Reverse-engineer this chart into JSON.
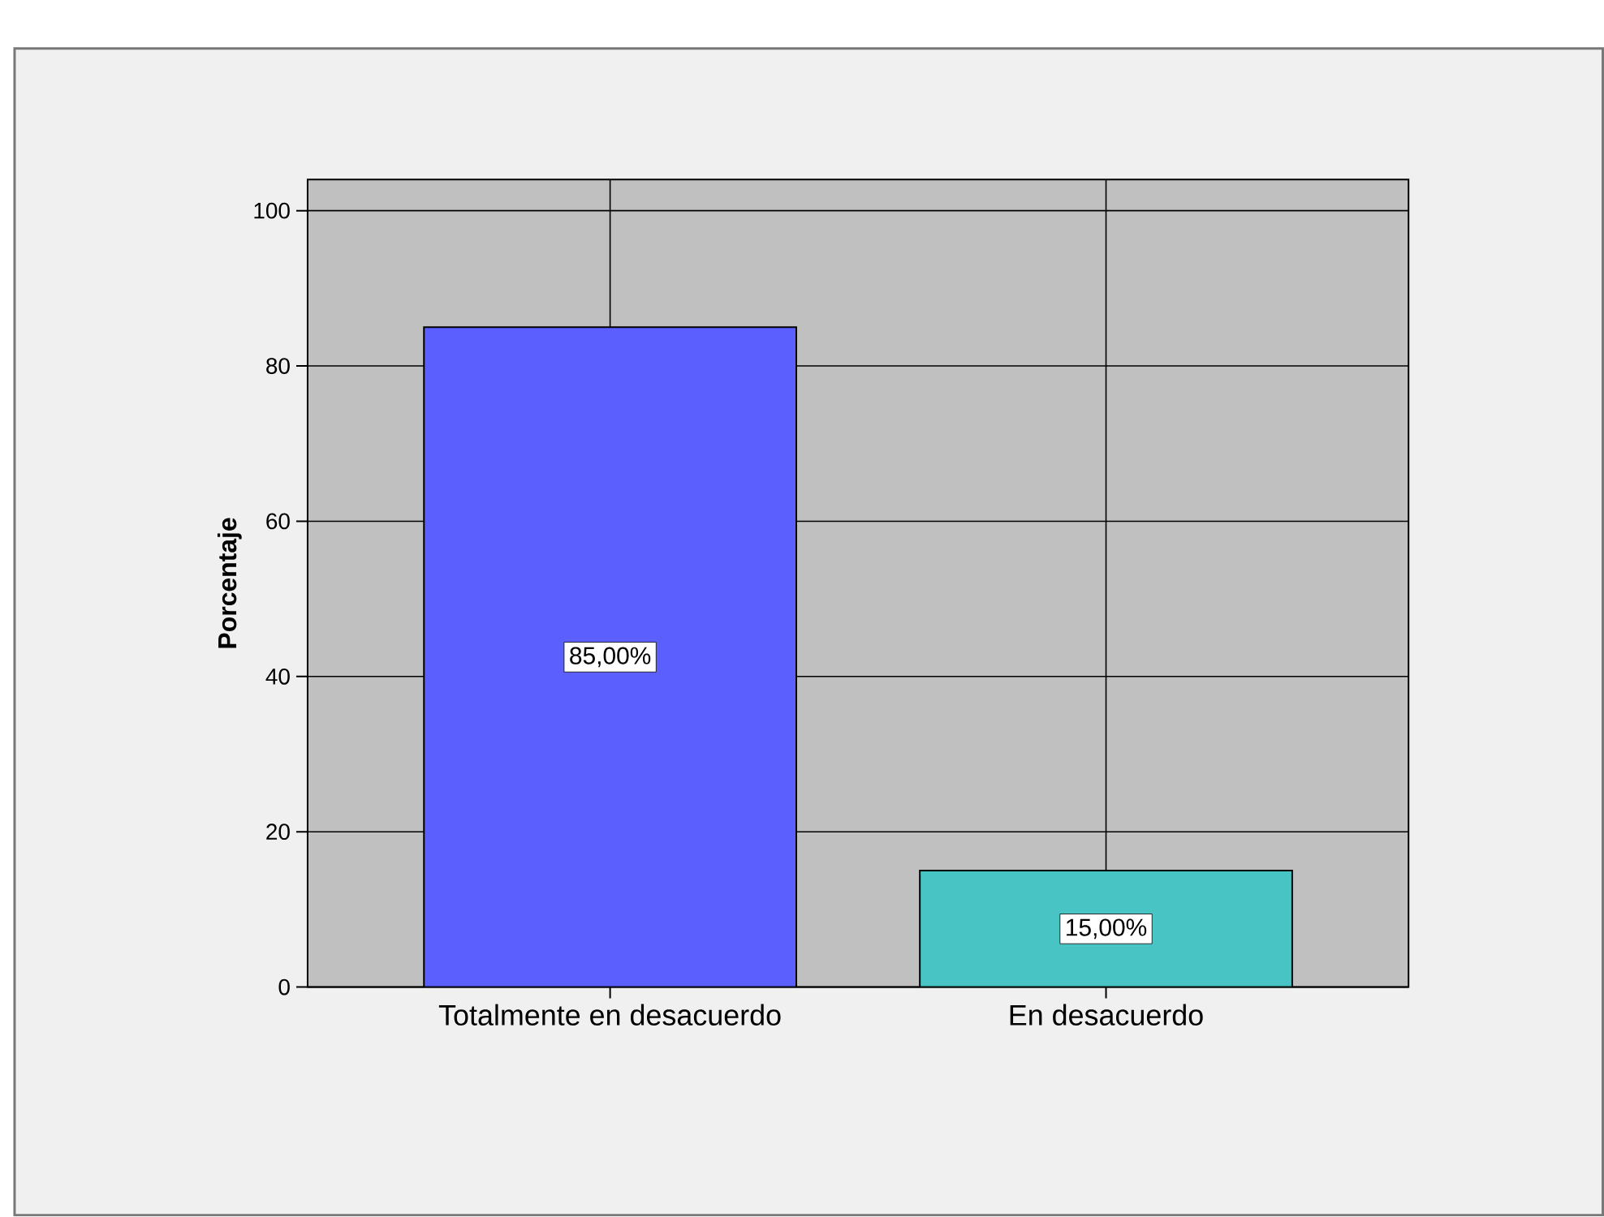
{
  "chart_data": {
    "type": "bar",
    "ylabel": "Porcentaje",
    "categories": [
      "Totalmente en desacuerdo",
      "En desacuerdo"
    ],
    "values": [
      85,
      15
    ],
    "colors": [
      "#5a5ffe",
      "#48c4c4"
    ],
    "value_labels": [
      "85,00%",
      "15,00%"
    ],
    "ylim": [
      0,
      104
    ],
    "yticks": [
      0,
      20,
      40,
      60,
      80,
      100
    ],
    "grid": true
  }
}
